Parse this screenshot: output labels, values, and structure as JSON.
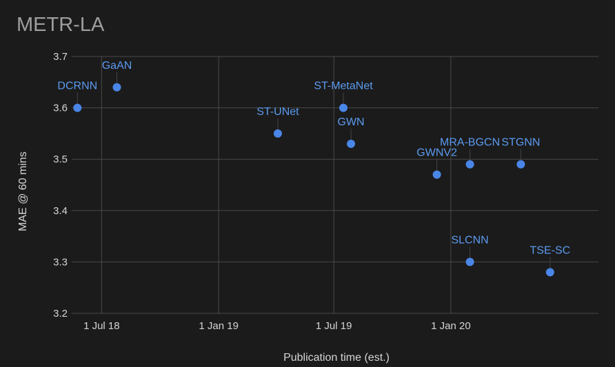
{
  "chart_data": {
    "type": "scatter",
    "title": "METR-LA",
    "xlabel": "Publication time (est.)",
    "ylabel": "MAE @ 60 mins",
    "x_ticks": [
      "1 Jul 18",
      "1 Jan 19",
      "1 Jul 19",
      "1 Jan 20"
    ],
    "y_ticks": [
      "3.2",
      "3.3",
      "3.4",
      "3.5",
      "3.6",
      "3.7"
    ],
    "xlim": [
      "2018-05-15",
      "2020-08-20"
    ],
    "ylim": [
      3.2,
      3.7
    ],
    "grid": true,
    "point_color": "#4a86e8",
    "points": [
      {
        "label": "DCRNN",
        "x": "2018-05-24",
        "y": 3.6
      },
      {
        "label": "GaAN",
        "x": "2018-07-25",
        "y": 3.64
      },
      {
        "label": "ST-UNet",
        "x": "2019-04-04",
        "y": 3.55
      },
      {
        "label": "ST-MetaNet",
        "x": "2019-07-16",
        "y": 3.6
      },
      {
        "label": "GWN",
        "x": "2019-07-28",
        "y": 3.53
      },
      {
        "label": "GWNV2",
        "x": "2019-12-10",
        "y": 3.47
      },
      {
        "label": "MRA-BGCN",
        "x": "2020-01-31",
        "y": 3.49
      },
      {
        "label": "SLCNN",
        "x": "2020-01-31",
        "y": 3.3
      },
      {
        "label": "STGNN",
        "x": "2020-04-20",
        "y": 3.49
      },
      {
        "label": "TSE-SC",
        "x": "2020-06-05",
        "y": 3.28
      }
    ]
  }
}
